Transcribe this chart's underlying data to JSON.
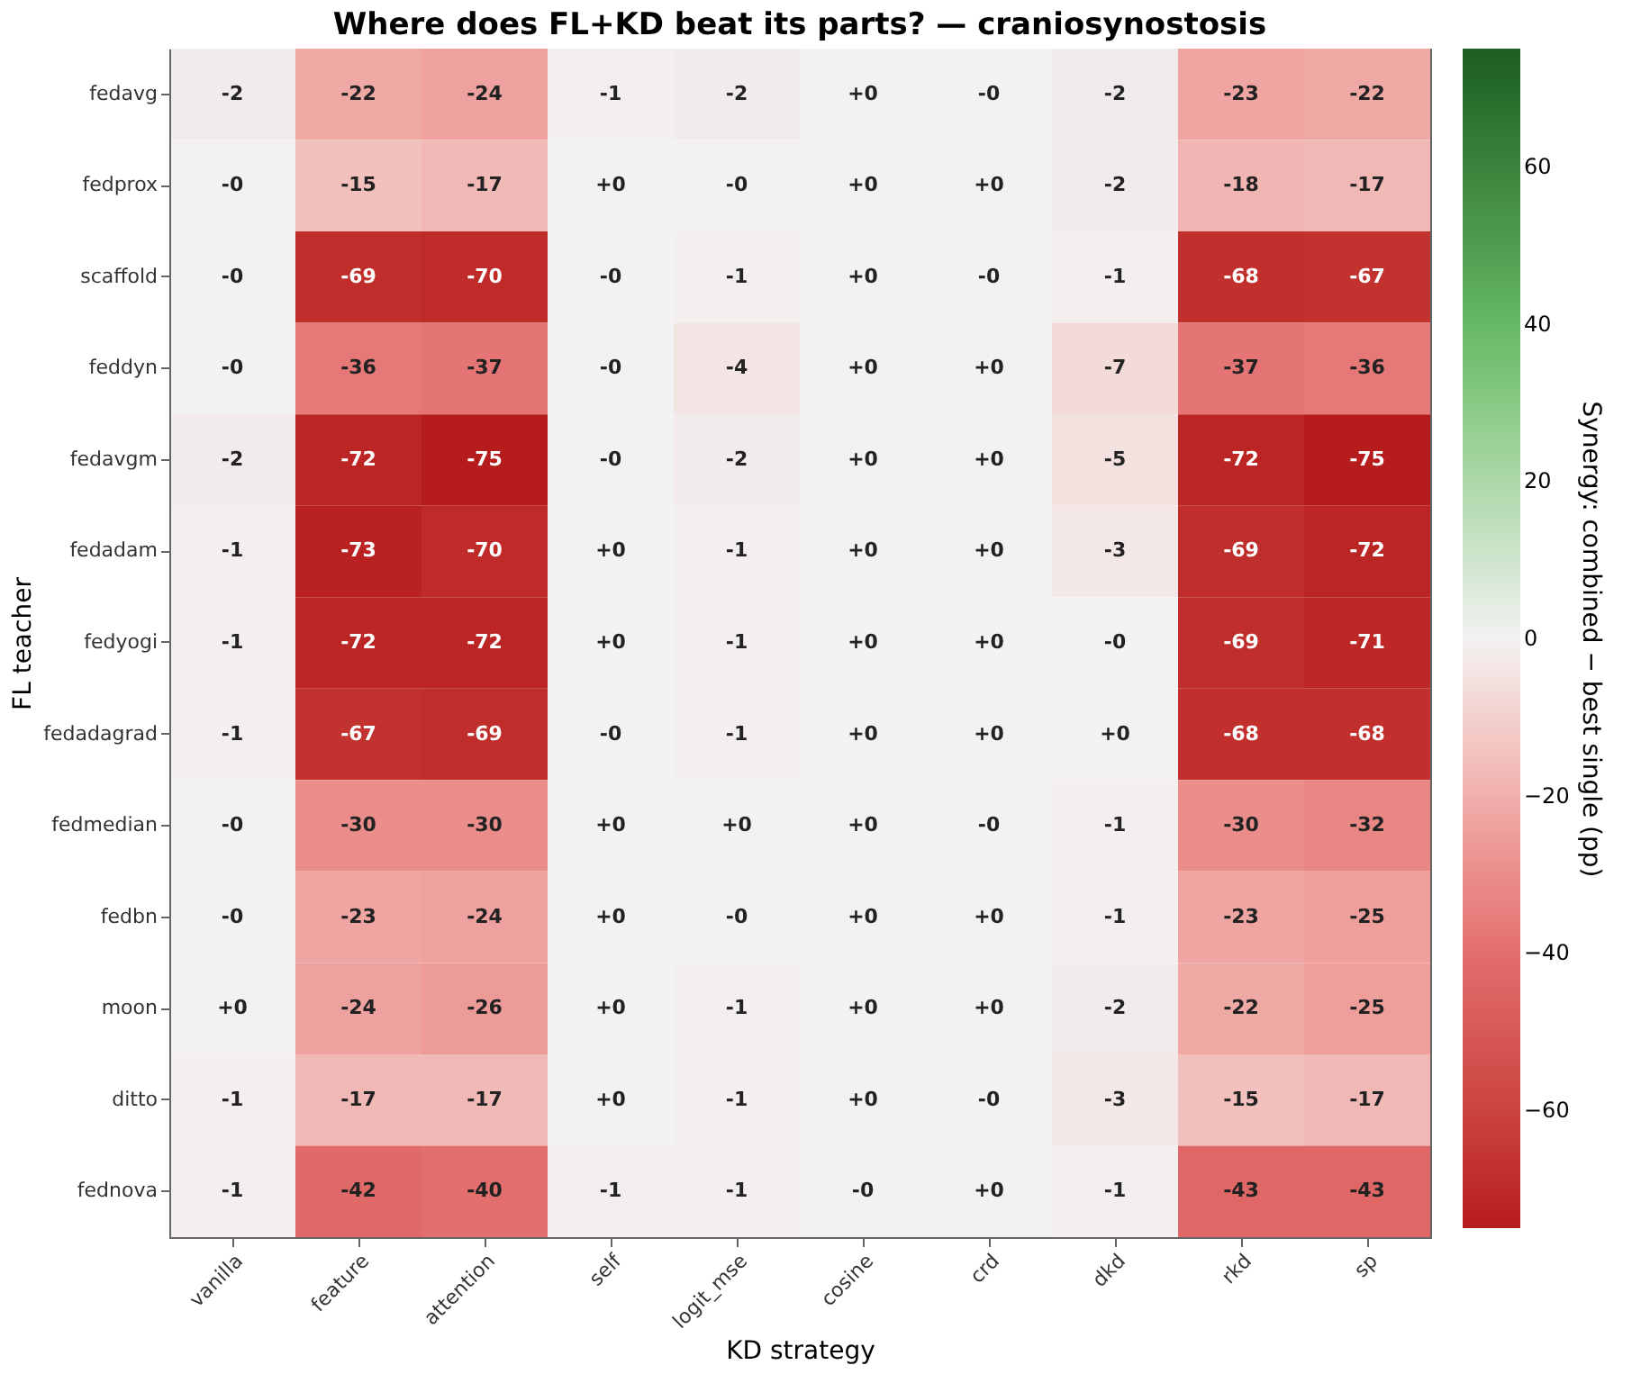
{
  "chart_data": {
    "type": "heatmap",
    "title": "Where does FL+KD beat its parts? — craniosynostosis",
    "xlabel": "KD strategy",
    "ylabel": "FL teacher",
    "clabel": "Synergy: combined − best single (pp)",
    "categories": [
      "vanilla",
      "feature",
      "attention",
      "self",
      "logit_mse",
      "cosine",
      "crd",
      "dkd",
      "rkd",
      "sp"
    ],
    "y_categories": [
      "fedavg",
      "fedprox",
      "scaffold",
      "feddyn",
      "fedavgm",
      "fedadam",
      "fedyogi",
      "fedadagrad",
      "fedmedian",
      "fedbn",
      "moon",
      "ditto",
      "fednova"
    ],
    "cells": [
      [
        -2,
        -22,
        -24,
        -1,
        -2,
        0,
        0,
        -2,
        -23,
        -22
      ],
      [
        0,
        -15,
        -17,
        0,
        0,
        0,
        0,
        -2,
        -18,
        -17
      ],
      [
        0,
        -69,
        -70,
        0,
        -1,
        0,
        0,
        -1,
        -68,
        -67
      ],
      [
        0,
        -36,
        -37,
        0,
        -4,
        0,
        0,
        -7,
        -37,
        -36
      ],
      [
        -2,
        -72,
        -75,
        0,
        -2,
        0,
        0,
        -5,
        -72,
        -75
      ],
      [
        -1,
        -73,
        -70,
        0,
        -1,
        0,
        0,
        -3,
        -69,
        -72
      ],
      [
        -1,
        -72,
        -72,
        0,
        -1,
        0,
        0,
        0,
        -69,
        -71
      ],
      [
        -1,
        -67,
        -69,
        0,
        -1,
        0,
        0,
        0,
        -68,
        -68
      ],
      [
        0,
        -30,
        -30,
        0,
        0,
        0,
        0,
        -1,
        -30,
        -32
      ],
      [
        0,
        -23,
        -24,
        0,
        0,
        0,
        0,
        -1,
        -23,
        -25
      ],
      [
        0,
        -24,
        -26,
        0,
        -1,
        0,
        0,
        -2,
        -22,
        -25
      ],
      [
        -1,
        -17,
        -17,
        0,
        -1,
        0,
        0,
        -3,
        -15,
        -17
      ],
      [
        -1,
        -42,
        -40,
        -1,
        -1,
        0,
        0,
        -1,
        -43,
        -43
      ]
    ],
    "cell_labels": [
      [
        "-2",
        "-22",
        "-24",
        "-1",
        "-2",
        "+0",
        "-0",
        "-2",
        "-23",
        "-22"
      ],
      [
        "-0",
        "-15",
        "-17",
        "+0",
        "-0",
        "+0",
        "+0",
        "-2",
        "-18",
        "-17"
      ],
      [
        "-0",
        "-69",
        "-70",
        "-0",
        "-1",
        "+0",
        "-0",
        "-1",
        "-68",
        "-67"
      ],
      [
        "-0",
        "-36",
        "-37",
        "-0",
        "-4",
        "+0",
        "+0",
        "-7",
        "-37",
        "-36"
      ],
      [
        "-2",
        "-72",
        "-75",
        "-0",
        "-2",
        "+0",
        "+0",
        "-5",
        "-72",
        "-75"
      ],
      [
        "-1",
        "-73",
        "-70",
        "+0",
        "-1",
        "+0",
        "+0",
        "-3",
        "-69",
        "-72"
      ],
      [
        "-1",
        "-72",
        "-72",
        "+0",
        "-1",
        "+0",
        "+0",
        "-0",
        "-69",
        "-71"
      ],
      [
        "-1",
        "-67",
        "-69",
        "-0",
        "-1",
        "+0",
        "+0",
        "+0",
        "-68",
        "-68"
      ],
      [
        "-0",
        "-30",
        "-30",
        "+0",
        "+0",
        "+0",
        "-0",
        "-1",
        "-30",
        "-32"
      ],
      [
        "-0",
        "-23",
        "-24",
        "+0",
        "-0",
        "+0",
        "+0",
        "-1",
        "-23",
        "-25"
      ],
      [
        "+0",
        "-24",
        "-26",
        "+0",
        "-1",
        "+0",
        "+0",
        "-2",
        "-22",
        "-25"
      ],
      [
        "-1",
        "-17",
        "-17",
        "+0",
        "-1",
        "+0",
        "-0",
        "-3",
        "-15",
        "-17"
      ],
      [
        "-1",
        "-42",
        "-40",
        "-1",
        "-1",
        "-0",
        "+0",
        "-1",
        "-43",
        "-43"
      ]
    ],
    "clim": [
      -75,
      75
    ],
    "cticks": [
      -60,
      -40,
      -20,
      0,
      20,
      40,
      60
    ]
  }
}
